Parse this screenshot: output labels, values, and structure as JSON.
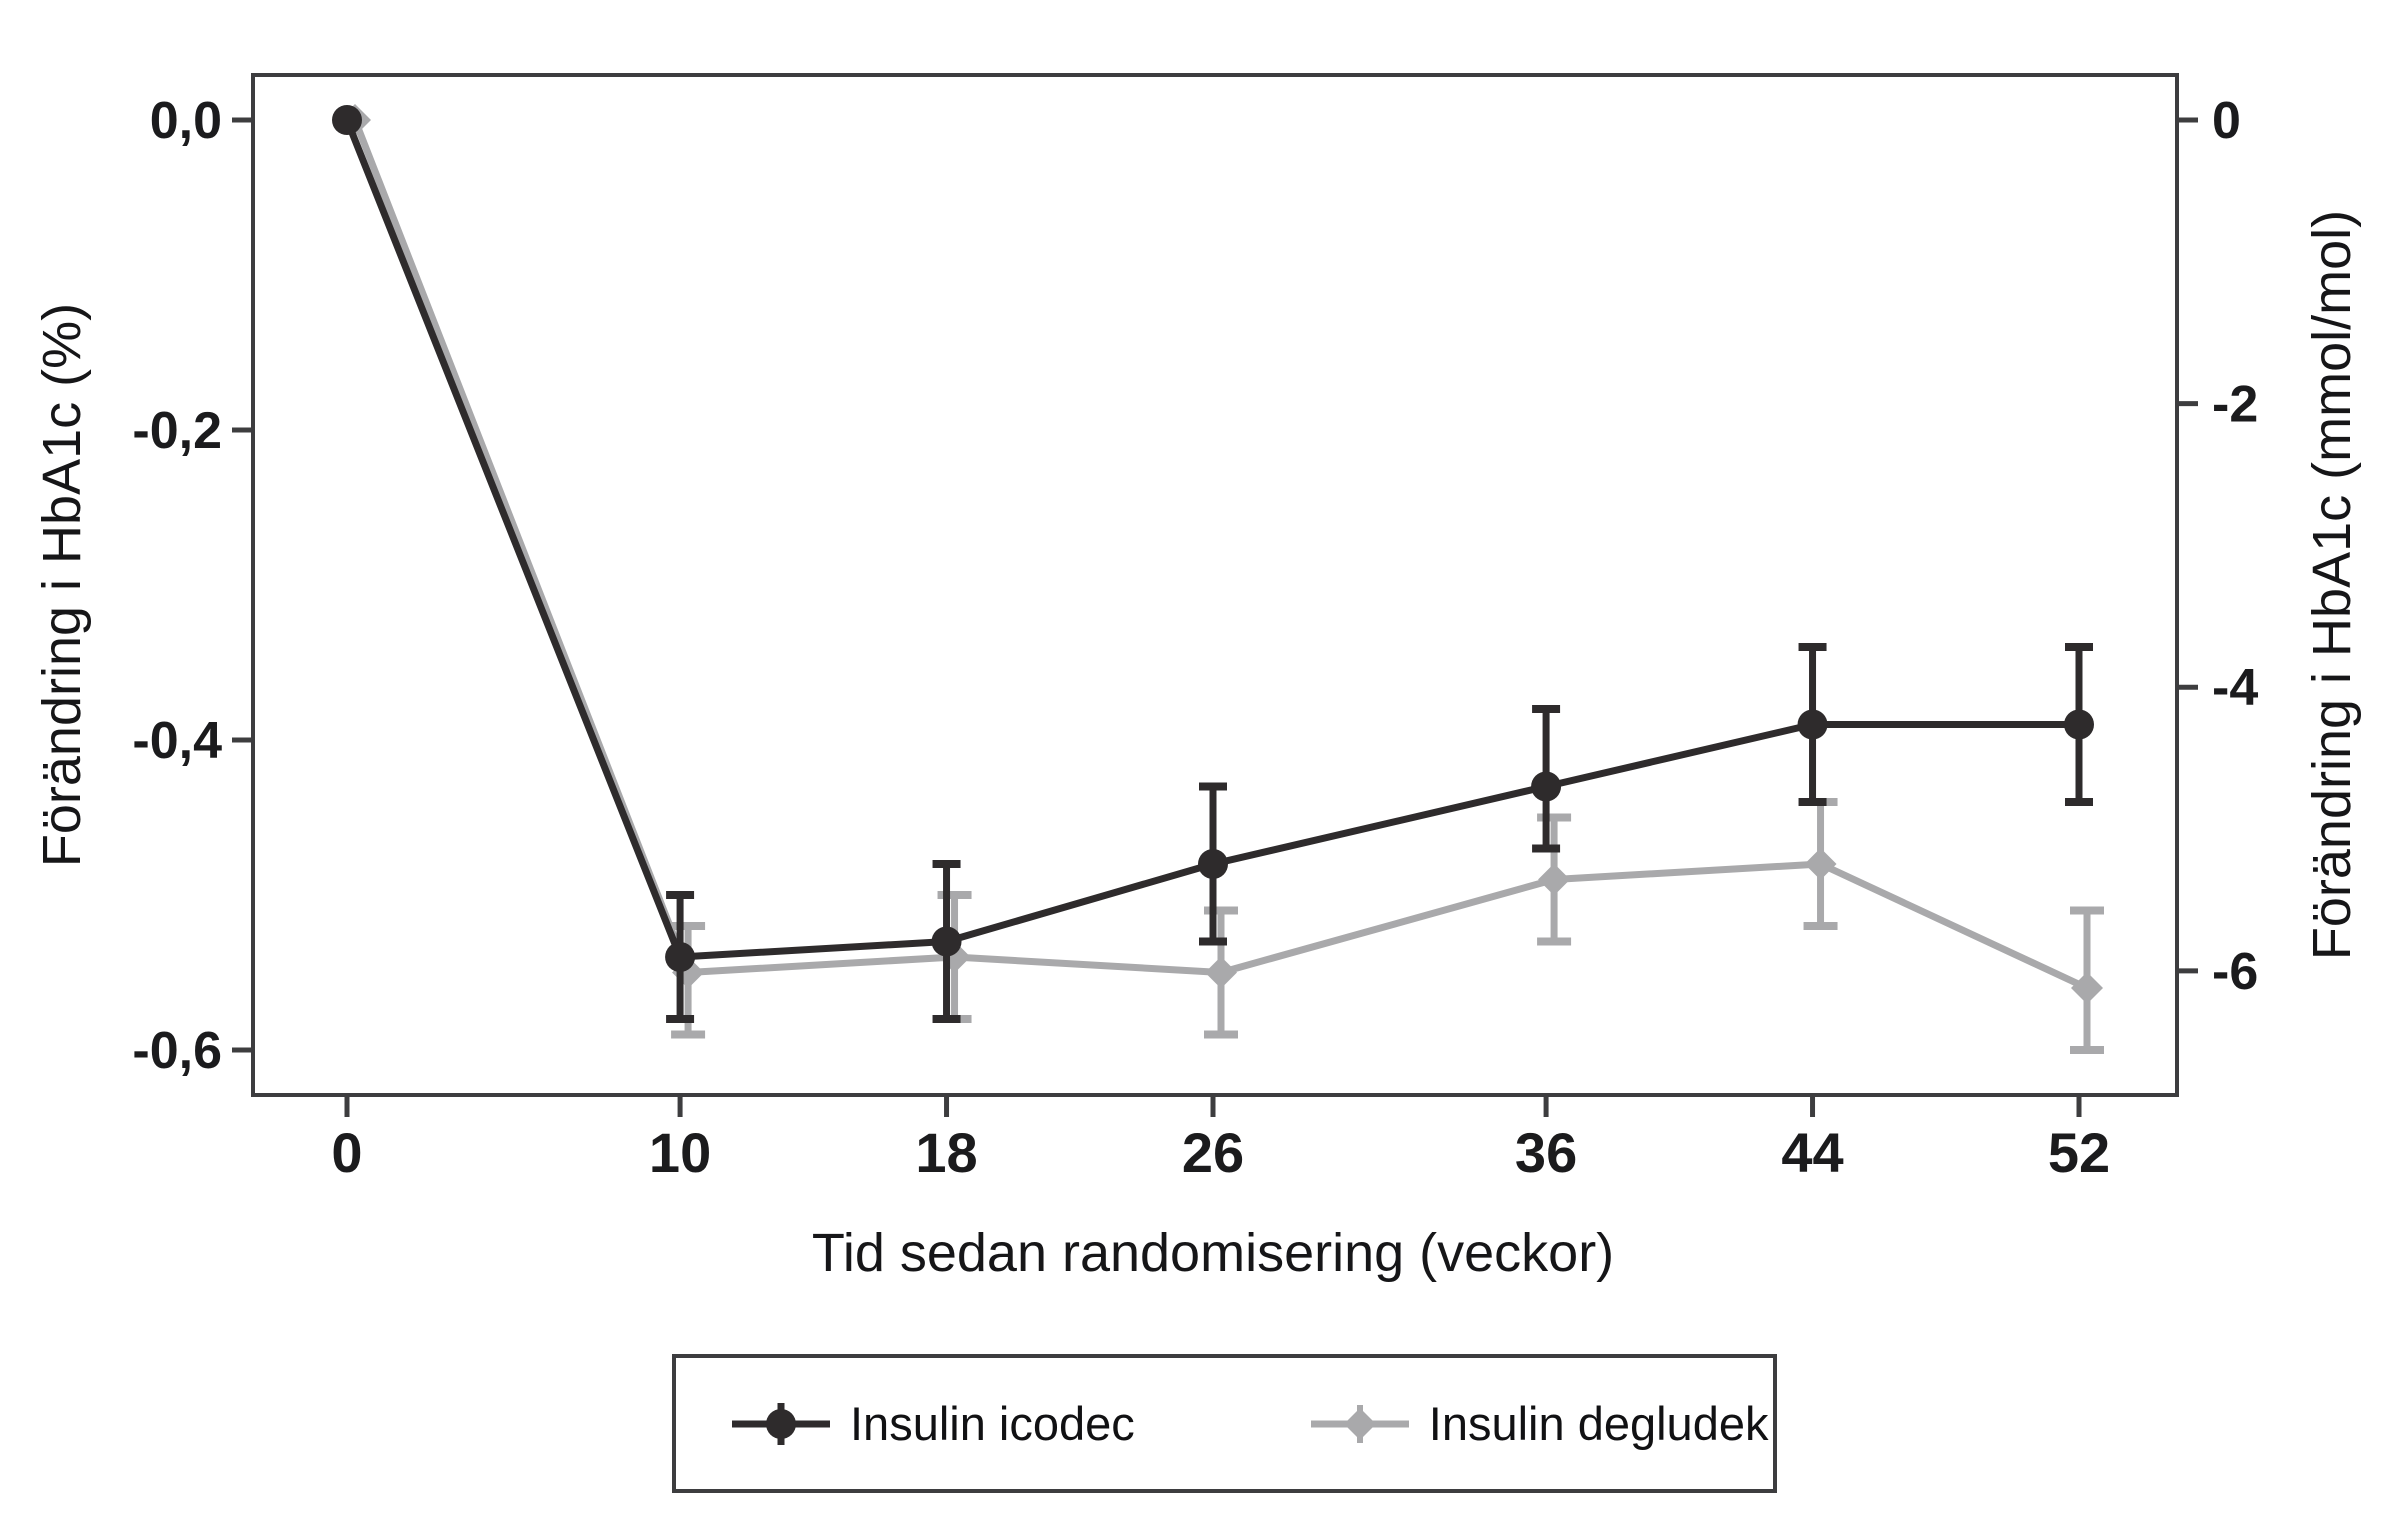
{
  "chart_data": {
    "type": "line",
    "title": "",
    "xlabel": "Tid sedan randomisering (veckor)",
    "ylabel_left": "Förändring i HbA1c (%)",
    "ylabel_right": "Förändring i HbA1c (mmol/mol)",
    "x_ticks": [
      0,
      10,
      18,
      26,
      36,
      44,
      52
    ],
    "x_tick_labels": [
      "0",
      "10",
      "18",
      "26",
      "36",
      "44",
      "52"
    ],
    "y_ticks_left": [
      {
        "value": 0.0,
        "label": "0,0"
      },
      {
        "value": -0.2,
        "label": "-0,2"
      },
      {
        "value": -0.4,
        "label": "-0,4"
      },
      {
        "value": -0.6,
        "label": "-0,6"
      }
    ],
    "y_ticks_right": [
      {
        "value": 0,
        "label": "0"
      },
      {
        "value": -2,
        "label": "-2"
      },
      {
        "value": -4,
        "label": "-4"
      },
      {
        "value": -6,
        "label": "-6"
      }
    ],
    "xlim_weeks": [
      -2.8,
      55
    ],
    "ylim_pct": [
      -0.63,
      0.03
    ],
    "mmol_per_pct": 10.93,
    "grid": false,
    "x": [
      0,
      10,
      18,
      26,
      36,
      44,
      52
    ],
    "series": [
      {
        "name": "Insulin icodec",
        "color": "#2e2b2c",
        "marker": "circle",
        "y": [
          0.0,
          -0.54,
          -0.53,
          -0.48,
          -0.43,
          -0.39,
          -0.39
        ],
        "ci_low": [
          null,
          -0.58,
          -0.58,
          -0.53,
          -0.47,
          -0.44,
          -0.44
        ],
        "ci_high": [
          null,
          -0.5,
          -0.48,
          -0.43,
          -0.38,
          -0.34,
          -0.34
        ]
      },
      {
        "name": "Insulin degludek",
        "color": "#a9a9ab",
        "marker": "diamond",
        "y": [
          0.0,
          -0.55,
          -0.54,
          -0.55,
          -0.49,
          -0.48,
          -0.56
        ],
        "ci_low": [
          null,
          -0.59,
          -0.58,
          -0.59,
          -0.53,
          -0.52,
          -0.6
        ],
        "ci_high": [
          null,
          -0.52,
          -0.5,
          -0.51,
          -0.45,
          -0.44,
          -0.51
        ]
      }
    ],
    "legend": {
      "position": "bottom",
      "items": [
        "Insulin icodec",
        "Insulin degludek"
      ]
    },
    "axis_color": "#3d3d3f",
    "text_color": "#1b1b1d"
  }
}
